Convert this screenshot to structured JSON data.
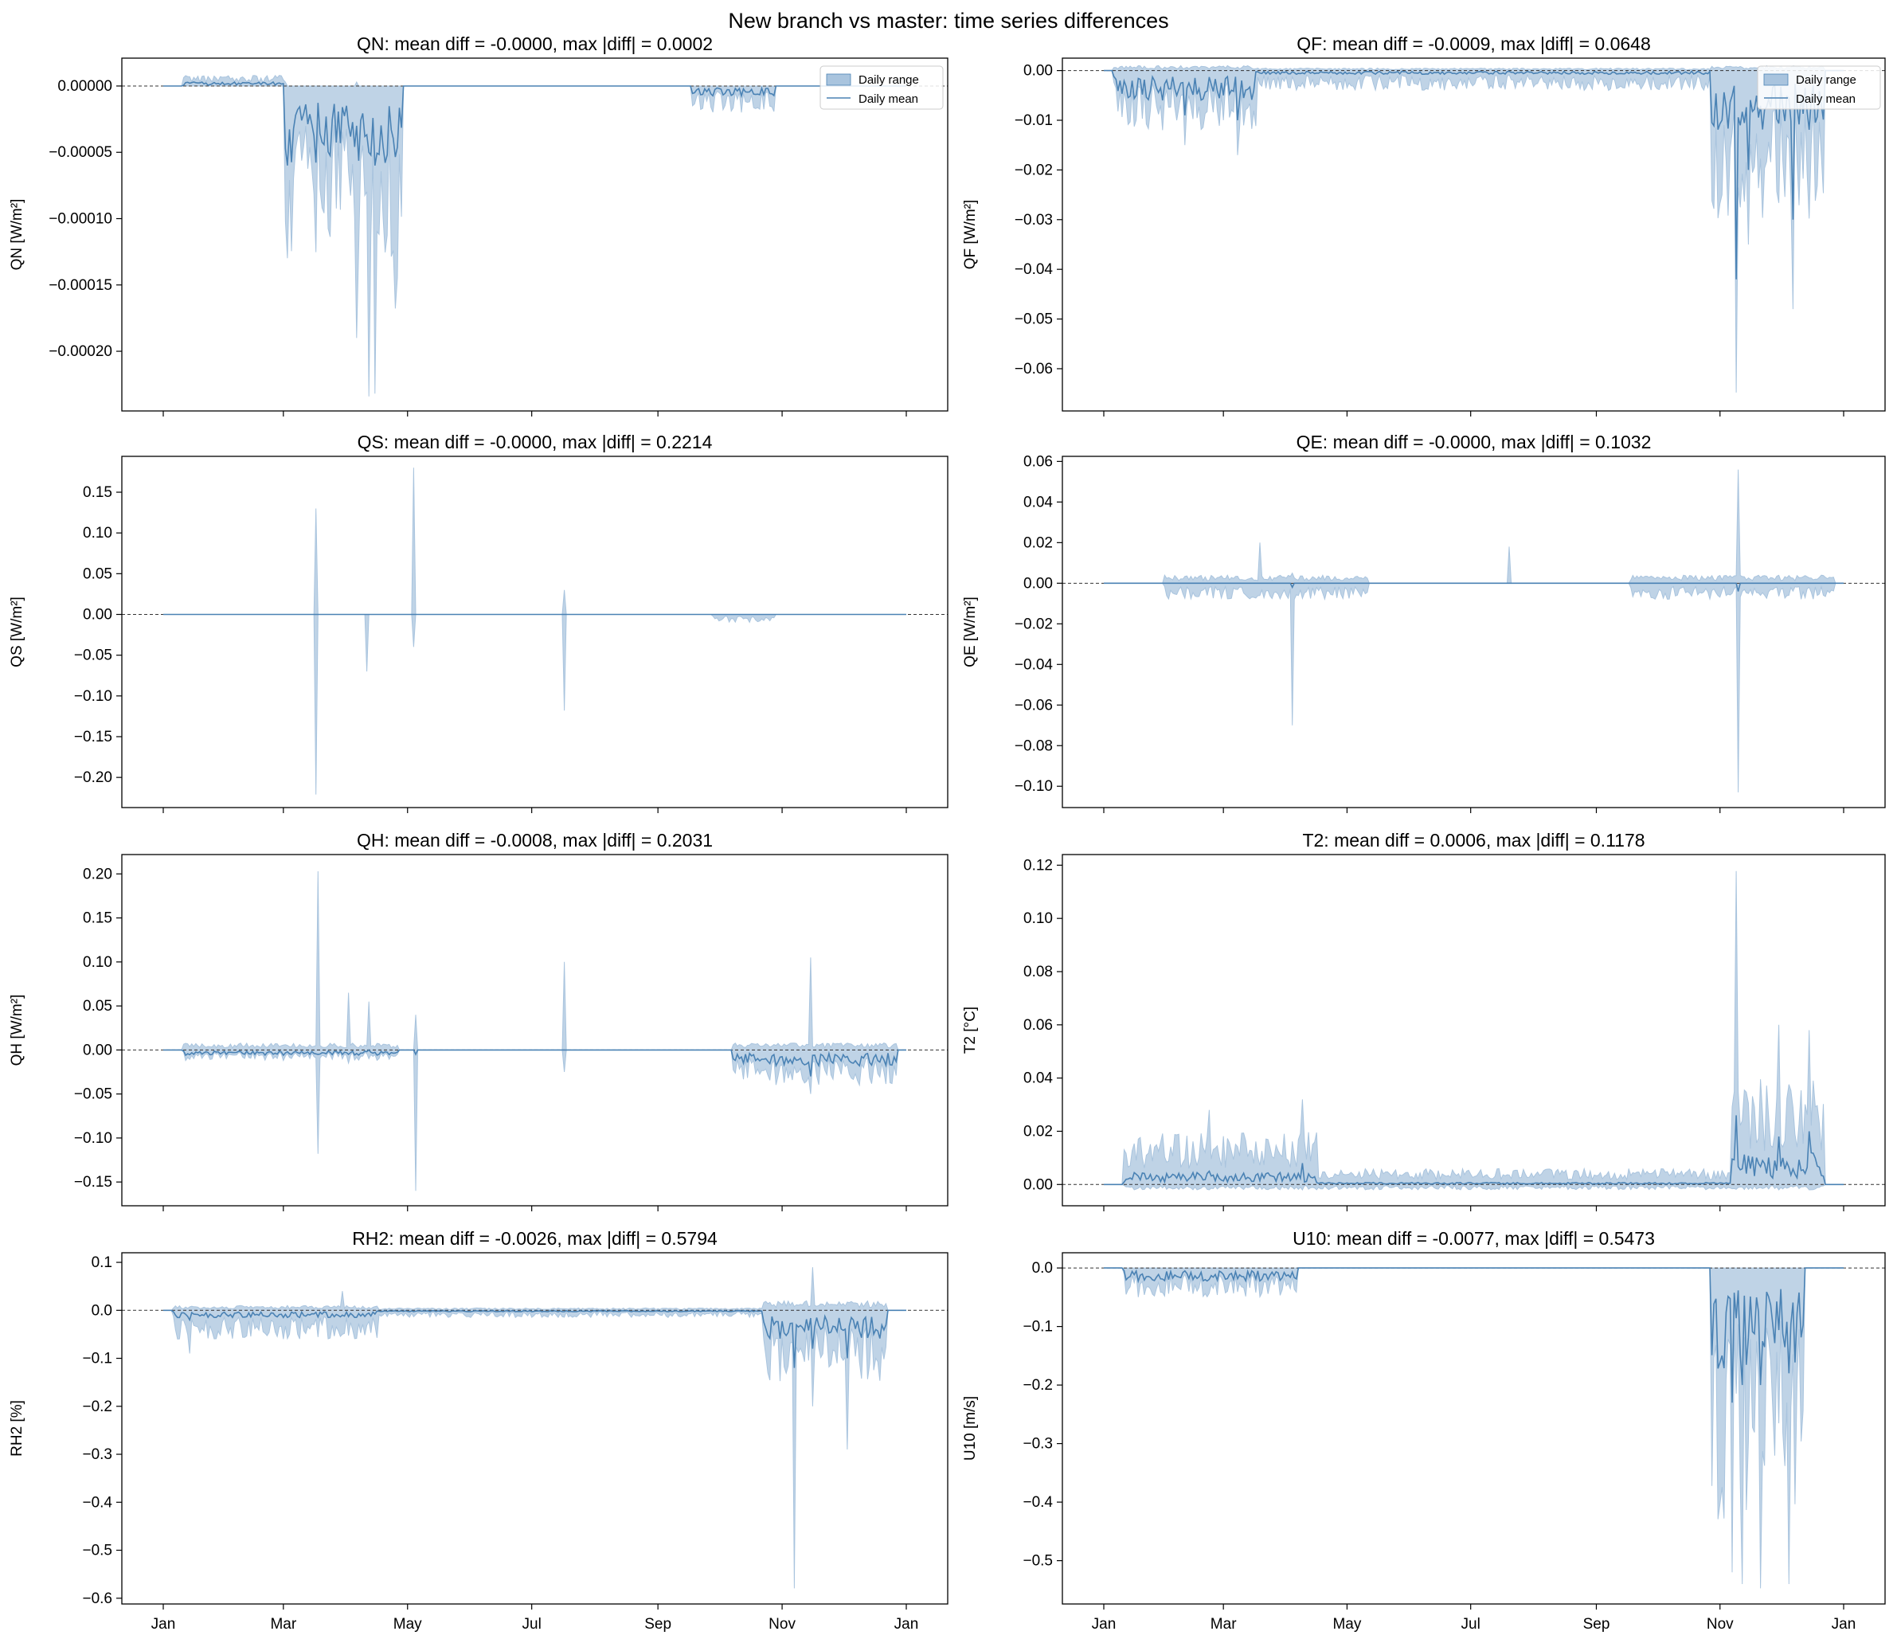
{
  "suptitle": "New branch vs master: time series differences",
  "colors": {
    "band": "#a9c4de",
    "line": "#4a82b4",
    "zero": "#333333"
  },
  "legend": {
    "range_label": "Daily range",
    "mean_label": "Daily mean"
  },
  "months": [
    "Jan",
    "Mar",
    "May",
    "Jul",
    "Sep",
    "Nov",
    "Jan"
  ],
  "chart_data": [
    {
      "type": "area",
      "variable": "QN",
      "title": "QN: mean diff = -0.0000, max |diff| = 0.0002",
      "ylabel": "QN [W/m²]",
      "ylim": [
        -0.000245,
        2.1e-05
      ],
      "yticks": [
        0.0,
        -5e-05,
        -0.0001,
        -0.00015,
        -0.0002
      ],
      "ytick_labels": [
        "0.00000",
        "−0.00005",
        "−0.00010",
        "−0.00015",
        "−0.00020"
      ],
      "legend": true,
      "bursts": [
        [
          10,
          60,
          8e-06,
          0.0,
          2e-06
        ],
        [
          60,
          115,
          -1e-05,
          -0.00013,
          -4e-05
        ],
        [
          112,
          117,
          0.0,
          -0.000235,
          -5e-05
        ],
        [
          260,
          300,
          0.0,
          -2e-05,
          -5e-06
        ]
      ],
      "spikes": [
        [
          95,
          3e-06,
          -0.00019,
          -3e-05
        ],
        [
          101,
          0.0,
          -0.000234,
          -5e-05
        ],
        [
          104,
          0.0,
          -0.000232,
          -6e-05
        ]
      ]
    },
    {
      "type": "area",
      "variable": "QF",
      "title": "QF: mean diff = -0.0009, max |diff| = 0.0648",
      "ylabel": "QF [W/m²]",
      "ylim": [
        -0.0685,
        0.0025
      ],
      "yticks": [
        0.0,
        -0.01,
        -0.02,
        -0.03,
        -0.04,
        -0.05,
        -0.06
      ],
      "ytick_labels": [
        "0.00",
        "−0.01",
        "−0.02",
        "−0.03",
        "−0.04",
        "−0.05",
        "−0.06"
      ],
      "legend": true,
      "bursts": [
        [
          5,
          75,
          0.001,
          -0.012,
          -0.004
        ],
        [
          75,
          300,
          0.0005,
          -0.004,
          -0.0005
        ],
        [
          300,
          355,
          0.001,
          -0.03,
          -0.008
        ]
      ],
      "spikes": [
        [
          40,
          0.0,
          -0.015,
          -0.009
        ],
        [
          66,
          0.0,
          -0.017,
          -0.01
        ],
        [
          312,
          0.0,
          -0.0648,
          -0.042
        ],
        [
          318,
          0.0,
          -0.035,
          -0.02
        ],
        [
          340,
          0.0,
          -0.048,
          -0.03
        ]
      ]
    },
    {
      "type": "area",
      "variable": "QS",
      "title": "QS: mean diff = -0.0000, max |diff| = 0.2214",
      "ylabel": "QS [W/m²]",
      "ylim": [
        -0.237,
        0.194
      ],
      "yticks": [
        0.15,
        0.1,
        0.05,
        0.0,
        -0.05,
        -0.1,
        -0.15,
        -0.2
      ],
      "ytick_labels": [
        "0.15",
        "0.10",
        "0.05",
        "0.00",
        "−0.05",
        "−0.10",
        "−0.15",
        "−0.20"
      ],
      "legend": false,
      "bursts": [
        [
          270,
          300,
          0.0,
          -0.01,
          0.0
        ]
      ],
      "spikes": [
        [
          75,
          0.13,
          -0.221,
          0.0
        ],
        [
          100,
          0.0,
          -0.07,
          0.0
        ],
        [
          123,
          0.18,
          -0.04,
          0.0
        ],
        [
          197,
          0.03,
          -0.118,
          0.0
        ]
      ]
    },
    {
      "type": "area",
      "variable": "QE",
      "title": "QE: mean diff = -0.0000, max |diff| = 0.1032",
      "ylabel": "QE [W/m²]",
      "ylim": [
        -0.1105,
        0.0625
      ],
      "yticks": [
        0.06,
        0.04,
        0.02,
        0.0,
        -0.02,
        -0.04,
        -0.06,
        -0.08,
        -0.1
      ],
      "ytick_labels": [
        "0.06",
        "0.04",
        "0.02",
        "0.00",
        "−0.02",
        "−0.04",
        "−0.06",
        "−0.08",
        "−0.10"
      ],
      "legend": false,
      "bursts": [
        [
          30,
          130,
          0.004,
          -0.008,
          0.0
        ],
        [
          260,
          360,
          0.004,
          -0.008,
          0.0
        ]
      ],
      "spikes": [
        [
          77,
          0.02,
          -0.005,
          0.0
        ],
        [
          93,
          0.005,
          -0.07,
          -0.002
        ],
        [
          200,
          0.018,
          0.0,
          0.0
        ],
        [
          313,
          0.056,
          -0.103,
          -0.004
        ]
      ]
    },
    {
      "type": "area",
      "variable": "QH",
      "title": "QH: mean diff = -0.0008, max |diff| = 0.2031",
      "ylabel": "QH [W/m²]",
      "ylim": [
        -0.177,
        0.222
      ],
      "yticks": [
        0.2,
        0.15,
        0.1,
        0.05,
        0.0,
        -0.05,
        -0.1,
        -0.15
      ],
      "ytick_labels": [
        "0.20",
        "0.15",
        "0.10",
        "0.05",
        "0.00",
        "−0.05",
        "−0.10",
        "−0.15"
      ],
      "legend": false,
      "bursts": [
        [
          10,
          115,
          0.008,
          -0.012,
          -0.004
        ],
        [
          280,
          360,
          0.008,
          -0.04,
          -0.012
        ]
      ],
      "spikes": [
        [
          76,
          0.203,
          -0.118,
          -0.005
        ],
        [
          91,
          0.065,
          -0.015,
          -0.005
        ],
        [
          101,
          0.055,
          -0.01,
          0.0
        ],
        [
          124,
          0.04,
          -0.16,
          -0.005
        ],
        [
          197,
          0.1,
          -0.025,
          0.0
        ],
        [
          318,
          0.105,
          -0.05,
          -0.03
        ]
      ]
    },
    {
      "type": "area",
      "variable": "T2",
      "title": "T2: mean diff = 0.0006, max |diff| = 0.1178",
      "ylabel": "T2 [°C]",
      "ylim": [
        -0.008,
        0.124
      ],
      "yticks": [
        0.12,
        0.1,
        0.08,
        0.06,
        0.04,
        0.02,
        0.0
      ],
      "ytick_labels": [
        "0.12",
        "0.10",
        "0.08",
        "0.06",
        "0.04",
        "0.02",
        "0.00"
      ],
      "legend": false,
      "bursts": [
        [
          10,
          105,
          0.02,
          -0.002,
          0.003
        ],
        [
          105,
          310,
          0.006,
          -0.002,
          0.0005
        ],
        [
          310,
          355,
          0.04,
          -0.002,
          0.008
        ]
      ],
      "spikes": [
        [
          52,
          0.028,
          -0.002,
          0.005
        ],
        [
          98,
          0.032,
          -0.002,
          0.008
        ],
        [
          312,
          0.1178,
          0.0,
          0.026
        ],
        [
          333,
          0.06,
          -0.002,
          0.018
        ],
        [
          348,
          0.058,
          -0.002,
          0.02
        ]
      ]
    },
    {
      "type": "area",
      "variable": "RH2",
      "title": "RH2: mean diff = -0.0026, max |diff| = 0.5794",
      "ylabel": "RH2 [%]",
      "ylim": [
        -0.612,
        0.12
      ],
      "yticks": [
        0.1,
        0.0,
        -0.1,
        -0.2,
        -0.3,
        -0.4,
        -0.5,
        -0.6
      ],
      "ytick_labels": [
        "0.1",
        "0.0",
        "−0.1",
        "−0.2",
        "−0.3",
        "−0.4",
        "−0.5",
        "−0.6"
      ],
      "legend": false,
      "bursts": [
        [
          5,
          105,
          0.01,
          -0.06,
          -0.01
        ],
        [
          105,
          295,
          0.005,
          -0.015,
          -0.002
        ],
        [
          295,
          355,
          0.02,
          -0.15,
          -0.04
        ]
      ],
      "spikes": [
        [
          13,
          0.0,
          -0.09,
          -0.02
        ],
        [
          88,
          0.04,
          -0.05,
          -0.01
        ],
        [
          310,
          0.0,
          -0.5794,
          -0.12
        ],
        [
          319,
          0.09,
          -0.2,
          -0.08
        ],
        [
          336,
          0.0,
          -0.29,
          -0.1
        ]
      ]
    },
    {
      "type": "area",
      "variable": "U10",
      "title": "U10: mean diff = -0.0077, max |diff| = 0.5473",
      "ylabel": "U10 [m/s]",
      "ylim": [
        -0.574,
        0.026
      ],
      "yticks": [
        0.0,
        -0.1,
        -0.2,
        -0.3,
        -0.4,
        -0.5
      ],
      "ytick_labels": [
        "0.0",
        "−0.1",
        "−0.2",
        "−0.3",
        "−0.4",
        "−0.5"
      ],
      "legend": false,
      "bursts": [
        [
          10,
          95,
          0.0,
          -0.05,
          -0.015
        ],
        [
          300,
          345,
          0.0,
          -0.45,
          -0.12
        ]
      ],
      "spikes": [
        [
          310,
          0.0,
          -0.52,
          -0.23
        ],
        [
          315,
          0.0,
          -0.54,
          -0.2
        ],
        [
          324,
          0.0,
          -0.5473,
          -0.2
        ],
        [
          338,
          0.0,
          -0.54,
          -0.18
        ]
      ]
    }
  ]
}
